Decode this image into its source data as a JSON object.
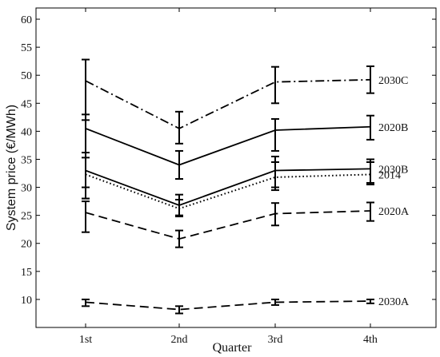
{
  "chart_data": {
    "type": "line",
    "xlabel": "Quarter",
    "ylabel": "System price (€/MWh)",
    "categories": [
      "1st",
      "2nd",
      "3rd",
      "4th"
    ],
    "ylim": [
      5,
      62
    ],
    "yticks": [
      10,
      15,
      20,
      25,
      30,
      35,
      40,
      45,
      50,
      55,
      60
    ],
    "grid": false,
    "series": [
      {
        "name": "2030C",
        "style": "dashdot",
        "values": [
          49.0,
          40.5,
          48.8,
          49.2
        ],
        "errors": [
          [
            42.0,
            52.8
          ],
          [
            37.8,
            43.5
          ],
          [
            45.0,
            51.5
          ],
          [
            46.8,
            51.6
          ]
        ]
      },
      {
        "name": "2020B",
        "style": "solid",
        "values": [
          40.5,
          34.0,
          40.2,
          40.8
        ],
        "errors": [
          [
            28.0,
            43.0
          ],
          [
            31.5,
            36.5
          ],
          [
            36.5,
            42.2
          ],
          [
            38.5,
            42.8
          ]
        ]
      },
      {
        "name": "2030B",
        "style": "solid",
        "values": [
          33.0,
          26.8,
          33.0,
          33.3
        ],
        "errors": [
          [
            28.0,
            36.2
          ],
          [
            25.0,
            28.7
          ],
          [
            29.5,
            35.5
          ],
          [
            30.5,
            35.0
          ]
        ]
      },
      {
        "name": "2014",
        "style": "dotted",
        "values": [
          32.3,
          26.2,
          31.8,
          32.3
        ],
        "errors": [
          [
            30.0,
            35.3
          ],
          [
            24.8,
            27.8
          ],
          [
            30.0,
            34.5
          ],
          [
            30.8,
            34.5
          ]
        ]
      },
      {
        "name": "2020A",
        "style": "dashed",
        "values": [
          25.5,
          20.8,
          25.3,
          25.8
        ],
        "errors": [
          [
            22.0,
            27.5
          ],
          [
            19.3,
            22.3
          ],
          [
            23.2,
            27.2
          ],
          [
            24.0,
            27.3
          ]
        ]
      },
      {
        "name": "2030A",
        "style": "dashed",
        "values": [
          9.5,
          8.2,
          9.5,
          9.7
        ],
        "errors": [
          [
            8.8,
            10.0
          ],
          [
            7.5,
            8.8
          ],
          [
            9.0,
            10.0
          ],
          [
            9.3,
            10.0
          ]
        ]
      }
    ]
  }
}
